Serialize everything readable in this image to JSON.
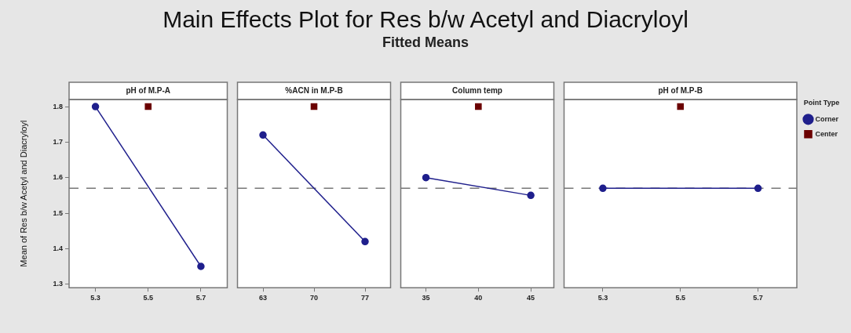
{
  "chart_data": [
    {
      "type": "other",
      "title": "Main Effects Plot for Res b/w Acetyl and Diacryloyl",
      "subtitle": "Fitted Means"
    },
    {
      "type": "line",
      "title": "pH of M.P-A",
      "ylabel": "Mean of Res b/w Acetyl and Diacryloyl",
      "xlim": [
        5.2,
        5.8
      ],
      "xticks": [
        5.3,
        5.5,
        5.7
      ],
      "ylim": [
        1.29,
        1.82
      ],
      "yticks": [
        1.3,
        1.4,
        1.5,
        1.6,
        1.7,
        1.8
      ],
      "ref_lines": [
        {
          "axis": "y",
          "value": 1.57,
          "color": "#777777",
          "line_style": "dashed"
        }
      ],
      "legend": false,
      "series": [
        {
          "type": "line",
          "color": "#1f1f8c",
          "marker": "circle",
          "x": [
            5.3,
            5.7
          ],
          "values": [
            1.8,
            1.35
          ]
        },
        {
          "type": "scatter",
          "color": "#6b0000",
          "marker": "square",
          "x": [
            5.5
          ],
          "values": [
            1.8
          ]
        }
      ]
    },
    {
      "type": "line",
      "title": "%ACN in M.P-B",
      "xlim": [
        59.5,
        80.5
      ],
      "xticks": [
        63,
        70,
        77
      ],
      "ylim": [
        1.29,
        1.82
      ],
      "yticks": [
        1.3,
        1.4,
        1.5,
        1.6,
        1.7,
        1.8
      ],
      "tick_labels": "x",
      "ref_lines": [
        {
          "axis": "y",
          "value": 1.57,
          "color": "#777777",
          "line_style": "dashed"
        }
      ],
      "legend": false,
      "series": [
        {
          "type": "line",
          "color": "#1f1f8c",
          "marker": "circle",
          "x": [
            63,
            77
          ],
          "values": [
            1.72,
            1.42
          ]
        },
        {
          "type": "scatter",
          "color": "#6b0000",
          "marker": "square",
          "x": [
            70
          ],
          "values": [
            1.8
          ]
        }
      ]
    },
    {
      "type": "line",
      "title": "Column temp",
      "xlim": [
        32.6,
        47.2
      ],
      "xticks": [
        35,
        40,
        45
      ],
      "ylim": [
        1.29,
        1.82
      ],
      "yticks": [
        1.3,
        1.4,
        1.5,
        1.6,
        1.7,
        1.8
      ],
      "tick_labels": "x",
      "ref_lines": [
        {
          "axis": "y",
          "value": 1.57,
          "color": "#777777",
          "line_style": "dashed"
        }
      ],
      "legend": false,
      "series": [
        {
          "type": "line",
          "color": "#1f1f8c",
          "marker": "circle",
          "x": [
            35,
            45
          ],
          "values": [
            1.6,
            1.55
          ]
        },
        {
          "type": "scatter",
          "color": "#6b0000",
          "marker": "square",
          "x": [
            40
          ],
          "values": [
            1.8
          ]
        }
      ]
    },
    {
      "type": "line",
      "title": "pH of M.P-B",
      "xlim": [
        5.2,
        5.8
      ],
      "xticks": [
        5.3,
        5.5,
        5.7
      ],
      "ylim": [
        1.29,
        1.82
      ],
      "yticks": [
        1.3,
        1.4,
        1.5,
        1.6,
        1.7,
        1.8
      ],
      "tick_labels": "x",
      "ref_lines": [
        {
          "axis": "y",
          "value": 1.57,
          "color": "#777777",
          "line_style": "dashed"
        }
      ],
      "legend": "right",
      "legend_title": "Point Type",
      "series": [
        {
          "type": "line",
          "name": "Corner",
          "color": "#1f1f8c",
          "marker": "circle",
          "x": [
            5.3,
            5.7
          ],
          "values": [
            1.57,
            1.57
          ]
        },
        {
          "type": "scatter",
          "name": "Center",
          "color": "#6b0000",
          "marker": "square",
          "x": [
            5.5
          ],
          "values": [
            1.8
          ]
        }
      ]
    }
  ]
}
